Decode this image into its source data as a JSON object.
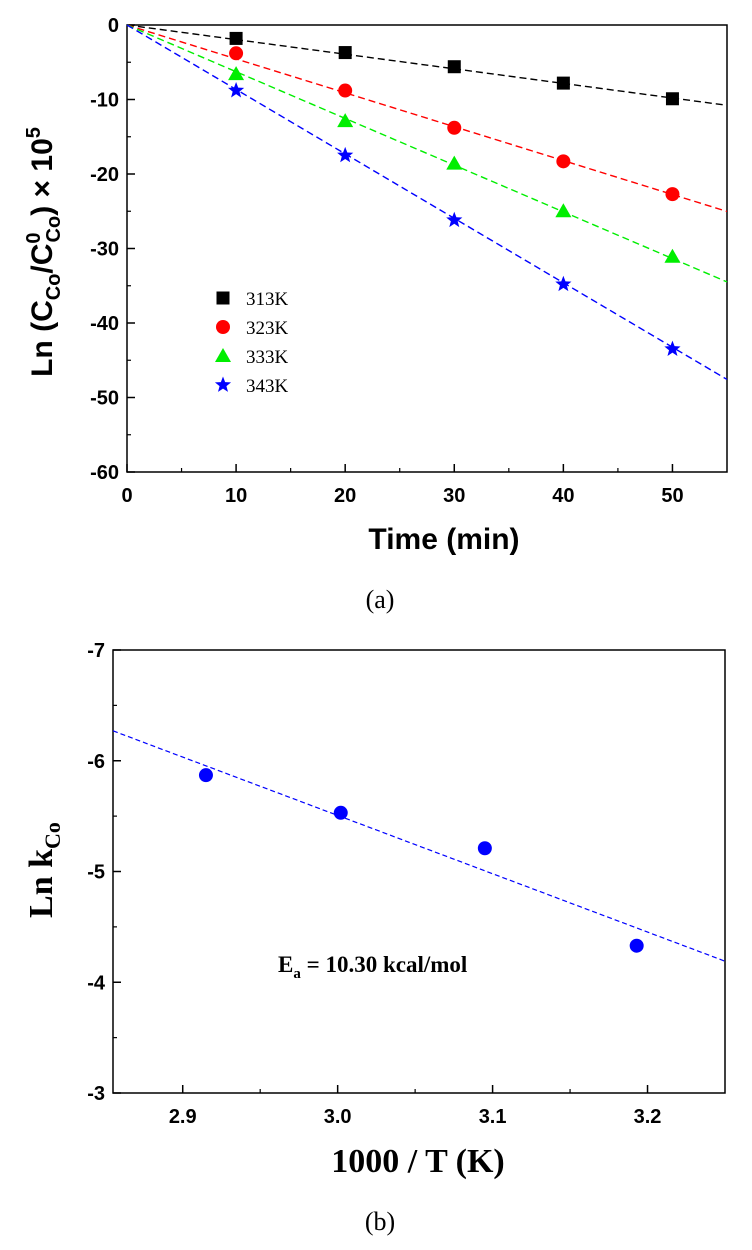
{
  "chart_data": [
    {
      "type": "scatter",
      "caption": "(a)",
      "xlabel": "Time (min)",
      "ylabel": {
        "prefix": "Ln (C",
        "sub1": "Co",
        "mid": "/C",
        "sup": "0",
        "sub2": "Co",
        "suffix": ") × 10",
        "exp": "5"
      },
      "xlim": [
        0,
        55
      ],
      "ylim": [
        -60,
        0
      ],
      "xticks": [
        0,
        10,
        20,
        30,
        40,
        50
      ],
      "yticks": [
        0,
        -10,
        -20,
        -30,
        -40,
        -50,
        -60
      ],
      "legend_position": "center-left",
      "series": [
        {
          "name": "313K",
          "color": "#000000",
          "marker": "square",
          "x": [
            10,
            20,
            30,
            40,
            50
          ],
          "y": [
            -1.8,
            -3.7,
            -5.6,
            -7.8,
            -9.9
          ],
          "fit_slope": -0.196
        },
        {
          "name": "323K",
          "color": "#ff0000",
          "marker": "circle",
          "x": [
            10,
            20,
            30,
            40,
            50
          ],
          "y": [
            -3.8,
            -8.8,
            -13.8,
            -18.3,
            -22.7
          ],
          "fit_slope": -0.455
        },
        {
          "name": "333K",
          "color": "#00ee00",
          "marker": "triangle",
          "x": [
            10,
            20,
            30,
            40,
            50
          ],
          "y": [
            -6.6,
            -12.9,
            -18.6,
            -25.0,
            -31.1
          ],
          "fit_slope": -0.627
        },
        {
          "name": "343K",
          "color": "#0000ff",
          "marker": "star",
          "x": [
            10,
            20,
            30,
            40,
            50
          ],
          "y": [
            -8.8,
            -17.5,
            -26.2,
            -34.8,
            -43.5
          ],
          "fit_slope": -0.865
        }
      ]
    },
    {
      "type": "scatter",
      "caption": "(b)",
      "xlabel": "1000 / T (K)",
      "ylabel": {
        "prefix": "Ln k",
        "sub": "Co"
      },
      "xlim": [
        2.855,
        3.25
      ],
      "ylim": [
        -7,
        -3
      ],
      "y_reversed": true,
      "xticks": [
        2.9,
        3.0,
        3.1,
        3.2
      ],
      "xtick_labels": [
        "2.9",
        "3.0",
        "3.1",
        "3.2"
      ],
      "yticks": [
        -7,
        -6,
        -5,
        -4,
        -3
      ],
      "series": [
        {
          "color": "#0000ff",
          "marker": "circle",
          "x": [
            2.915,
            3.002,
            3.095,
            3.193
          ],
          "y": [
            -5.87,
            -5.53,
            -5.21,
            -4.33
          ]
        }
      ],
      "fit": {
        "x": [
          2.855,
          3.25
        ],
        "y": [
          -6.27,
          -4.19
        ]
      },
      "annotation": {
        "main": "E",
        "sub": "a",
        "rest": " = 10.30 kcal/mol"
      }
    }
  ]
}
